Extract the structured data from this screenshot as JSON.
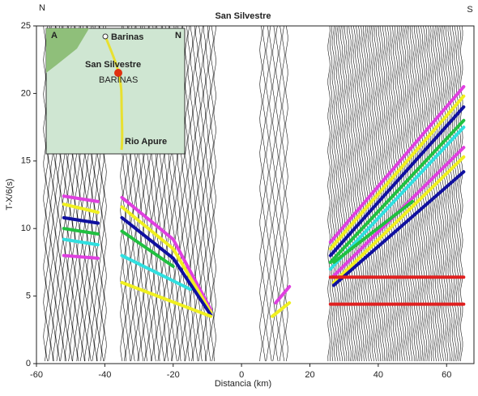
{
  "chart_data": {
    "type": "line",
    "title": "San Silvestre",
    "north_label": "N",
    "south_label": "S",
    "x_label": "Distancia (km)",
    "y_label": "T-X/6(s)",
    "xlim": [
      -60,
      68
    ],
    "xticks": [
      -60,
      -40,
      -20,
      0,
      20,
      40,
      60
    ],
    "ylim": [
      0,
      25
    ],
    "yticks": [
      0,
      5,
      10,
      15,
      20,
      25
    ],
    "series": [
      {
        "color": "#e040e0",
        "x": [
          -52,
          -42
        ],
        "values": [
          12.4,
          12.0
        ]
      },
      {
        "color": "#f0f020",
        "x": [
          -52,
          -42
        ],
        "values": [
          11.8,
          11.2
        ]
      },
      {
        "color": "#1010a0",
        "x": [
          -52,
          -42
        ],
        "values": [
          10.8,
          10.4
        ]
      },
      {
        "color": "#20c040",
        "x": [
          -52,
          -42
        ],
        "values": [
          10.0,
          9.6
        ]
      },
      {
        "color": "#30e0e0",
        "x": [
          -52,
          -42
        ],
        "values": [
          9.2,
          8.8
        ]
      },
      {
        "color": "#e040e0",
        "x": [
          -52,
          -42
        ],
        "values": [
          8.0,
          7.8
        ]
      },
      {
        "color": "#e040e0",
        "x": [
          -35,
          -20,
          -9
        ],
        "values": [
          12.3,
          9.2,
          4.0
        ]
      },
      {
        "color": "#f0f020",
        "x": [
          -35,
          -20,
          -9
        ],
        "values": [
          11.6,
          8.5,
          3.8
        ]
      },
      {
        "color": "#1010a0",
        "x": [
          -35,
          -20,
          -9
        ],
        "values": [
          10.8,
          7.8,
          3.6
        ]
      },
      {
        "color": "#20c040",
        "x": [
          -35,
          -20
        ],
        "values": [
          9.8,
          7.2
        ]
      },
      {
        "color": "#30e0e0",
        "x": [
          -35,
          -15
        ],
        "values": [
          8.0,
          5.5
        ]
      },
      {
        "color": "#f0f020",
        "x": [
          -35,
          -9
        ],
        "values": [
          6.0,
          3.5
        ]
      },
      {
        "color": "#f0f020",
        "x": [
          9,
          14
        ],
        "values": [
          3.5,
          4.5
        ]
      },
      {
        "color": "#e040e0",
        "x": [
          10,
          14
        ],
        "values": [
          4.5,
          5.7
        ]
      },
      {
        "color": "#e040e0",
        "x": [
          26,
          65
        ],
        "values": [
          9.0,
          20.5
        ]
      },
      {
        "color": "#f0f020",
        "x": [
          26,
          65
        ],
        "values": [
          8.5,
          19.8
        ]
      },
      {
        "color": "#1010a0",
        "x": [
          26,
          65
        ],
        "values": [
          8.0,
          19.0
        ]
      },
      {
        "color": "#20c040",
        "x": [
          26,
          65
        ],
        "values": [
          7.5,
          18.0
        ]
      },
      {
        "color": "#30e0e0",
        "x": [
          26,
          65
        ],
        "values": [
          7.0,
          17.5
        ]
      },
      {
        "color": "#e040e0",
        "x": [
          27,
          65
        ],
        "values": [
          6.5,
          16.0
        ]
      },
      {
        "color": "#f0f020",
        "x": [
          27,
          65
        ],
        "values": [
          6.0,
          15.3
        ]
      },
      {
        "color": "#1010a0",
        "x": [
          27,
          65
        ],
        "values": [
          5.8,
          14.2
        ]
      },
      {
        "color": "#20c040",
        "x": [
          27,
          50
        ],
        "values": [
          7.5,
          12.0
        ]
      },
      {
        "color": "#e02020",
        "x": [
          26,
          65
        ],
        "values": [
          6.4,
          6.4
        ]
      },
      {
        "color": "#e02020",
        "x": [
          26,
          65
        ],
        "values": [
          4.4,
          4.4
        ]
      }
    ],
    "inset": {
      "panel": "A",
      "north": "N",
      "places": [
        "Barinas",
        "San Silvestre",
        "BARINAS",
        "Rio Apure"
      ]
    }
  }
}
